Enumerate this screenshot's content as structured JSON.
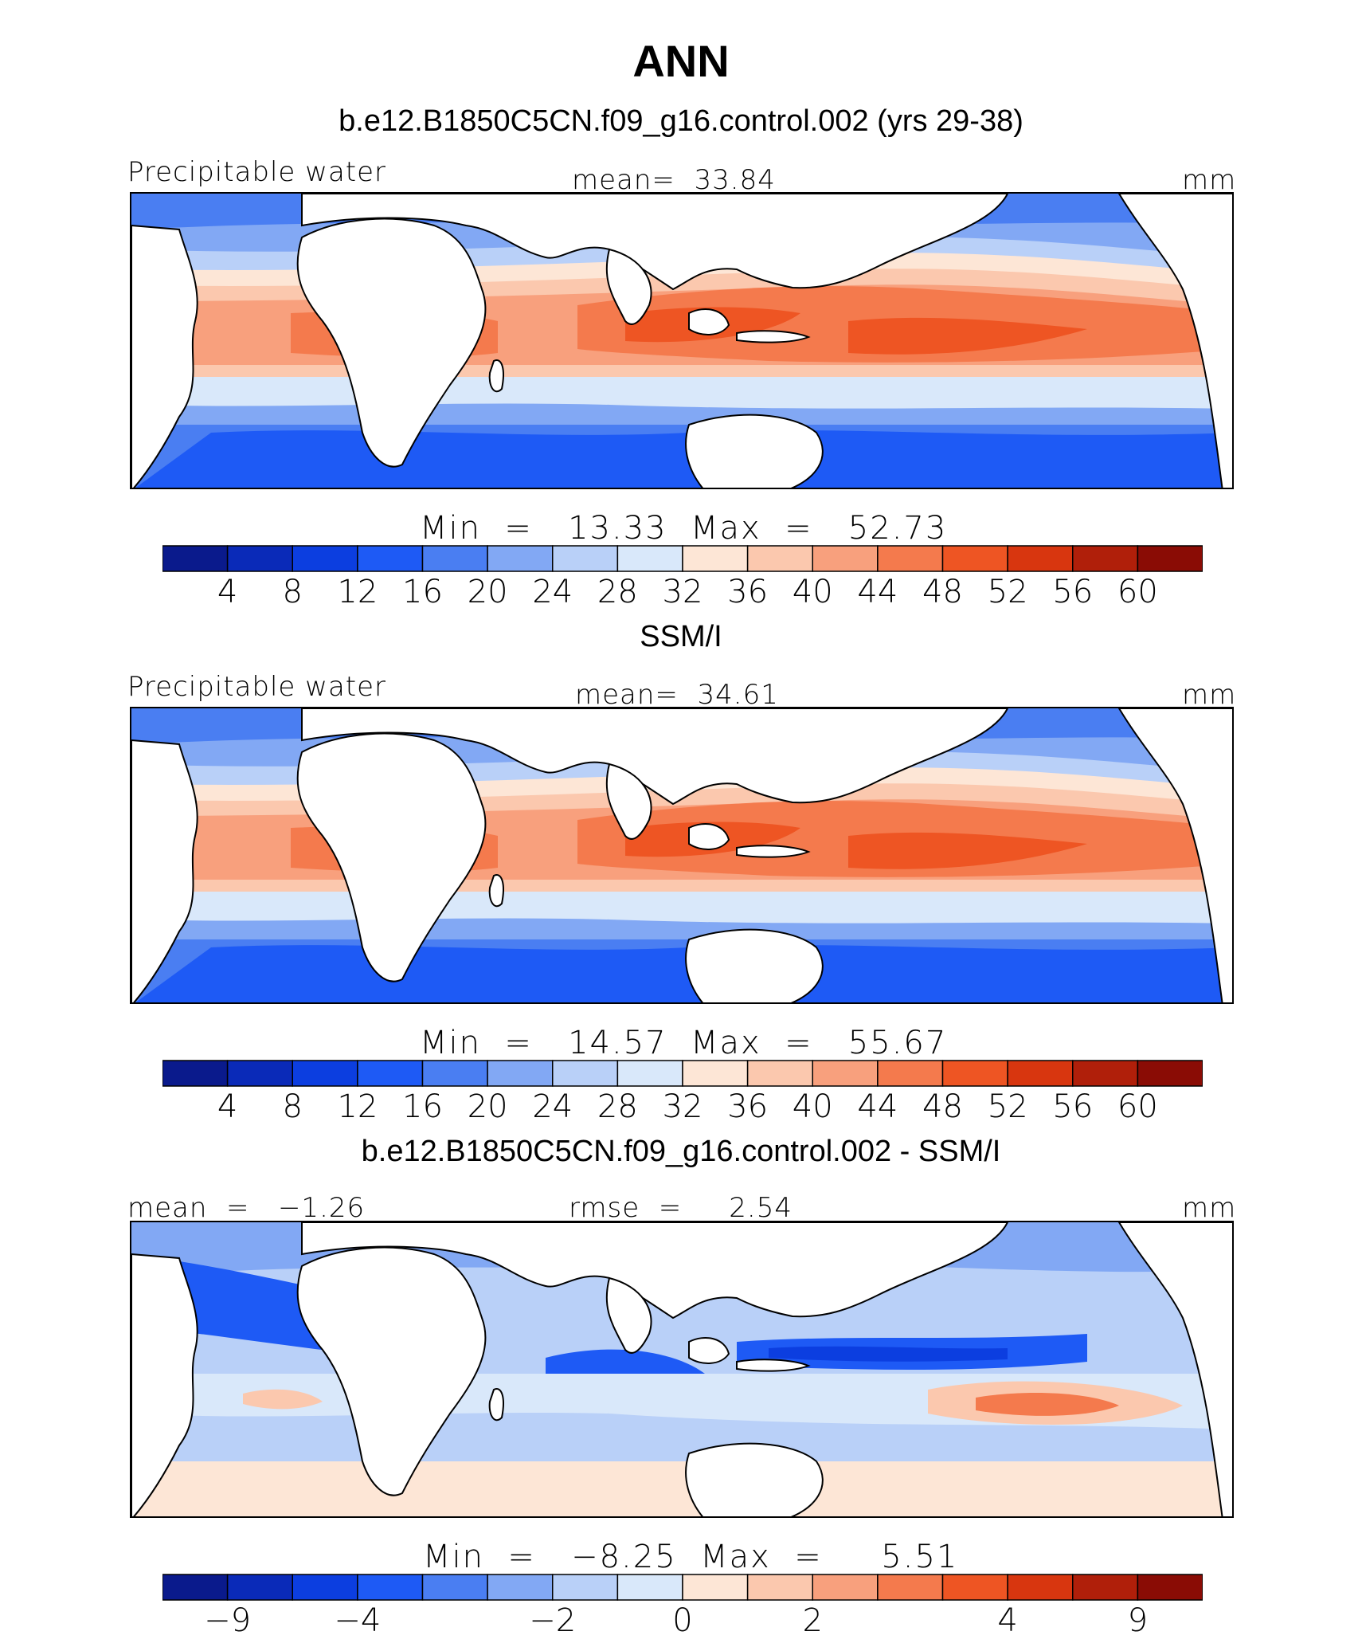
{
  "chart_data": [
    {
      "type": "heatmap",
      "title": "ANN",
      "subtitle": "b.e12.B1850C5CN.f09_g16.control.002 (yrs 29-38)",
      "left_label": "Precipitable water",
      "center_label": "mean=  33.84",
      "units": "mm",
      "stats": "Min  =   13.33  Max  =   52.73",
      "colorbar_levels": [
        "4",
        "8",
        "12",
        "16",
        "20",
        "24",
        "28",
        "32",
        "36",
        "40",
        "44",
        "48",
        "52",
        "56",
        "60"
      ],
      "min": 13.33,
      "max": 52.73,
      "mean": 33.84
    },
    {
      "type": "heatmap",
      "subtitle": "SSM/I",
      "left_label": "Precipitable water",
      "center_label": "mean=  34.61",
      "units": "mm",
      "stats": "Min  =   14.57  Max  =   55.67",
      "colorbar_levels": [
        "4",
        "8",
        "12",
        "16",
        "20",
        "24",
        "28",
        "32",
        "36",
        "40",
        "44",
        "48",
        "52",
        "56",
        "60"
      ],
      "min": 14.57,
      "max": 55.67,
      "mean": 34.61
    },
    {
      "type": "heatmap",
      "subtitle": "b.e12.B1850C5CN.f09_g16.control.002 - SSM/I",
      "left_label": "mean  =   −1.26",
      "center_label": "rmse  =     2.54",
      "units": "mm",
      "stats": "Min  =   −8.25  Max  =     5.51",
      "colorbar_levels": [
        "−9",
        "−4",
        "−2",
        "0",
        "2",
        "4",
        "9"
      ],
      "min": -8.25,
      "max": 5.51,
      "mean": -1.26,
      "rmse": 2.54
    }
  ],
  "colorbar_colors": [
    "#0a1a8c",
    "#0a2ab8",
    "#0c3ee0",
    "#1e5af5",
    "#4a7ef2",
    "#82a8f4",
    "#b9d0f8",
    "#d9e8fa",
    "#fde6d6",
    "#fbc8ae",
    "#f8a07d",
    "#f47a4d",
    "#ee5523",
    "#d8360f",
    "#b01f0a",
    "#8a0c05"
  ],
  "map_colors": {
    "ocean": "#d9e8fa"
  }
}
